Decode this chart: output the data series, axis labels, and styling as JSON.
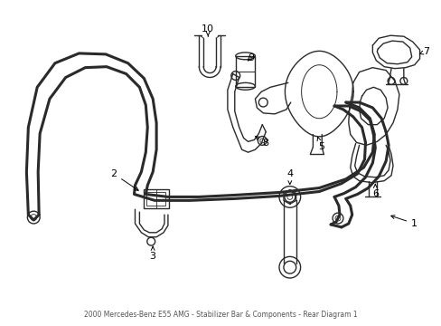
{
  "bg_color": "#ffffff",
  "line_color": "#2a2a2a",
  "label_color": "#000000",
  "figsize": [
    4.89,
    3.6
  ],
  "dpi": 100,
  "title": "2000 Mercedes-Benz E55 AMG - Stabilizer Bar & Components - Rear Diagram 1"
}
